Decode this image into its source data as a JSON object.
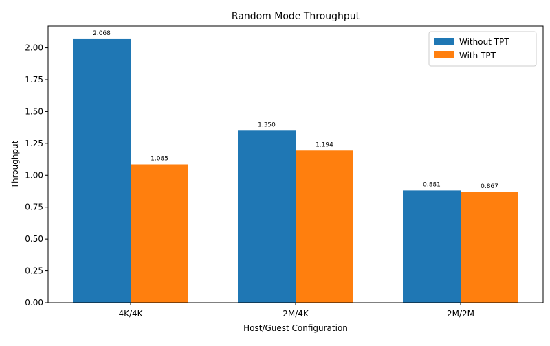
{
  "chart_data": {
    "type": "bar",
    "title": "Random Mode Throughput",
    "xlabel": "Host/Guest Configuration",
    "ylabel": "Throughput",
    "categories": [
      "4K/4K",
      "2M/4K",
      "2M/2M"
    ],
    "series": [
      {
        "name": "Without TPT",
        "values": [
          2.068,
          1.35,
          0.881
        ],
        "labels": [
          "2.068",
          "1.350",
          "0.881"
        ],
        "color": "#1f77b4"
      },
      {
        "name": "With TPT",
        "values": [
          1.085,
          1.194,
          0.867
        ],
        "labels": [
          "1.085",
          "1.194",
          "0.867"
        ],
        "color": "#ff7f0e"
      }
    ],
    "ylim": [
      0,
      2.17
    ],
    "yticks": [
      0.0,
      0.25,
      0.5,
      0.75,
      1.0,
      1.25,
      1.5,
      1.75,
      2.0
    ],
    "ytick_labels": [
      "0.00",
      "0.25",
      "0.50",
      "0.75",
      "1.00",
      "1.25",
      "1.50",
      "1.75",
      "2.00"
    ],
    "grid": false,
    "legend_position": "top-right"
  }
}
